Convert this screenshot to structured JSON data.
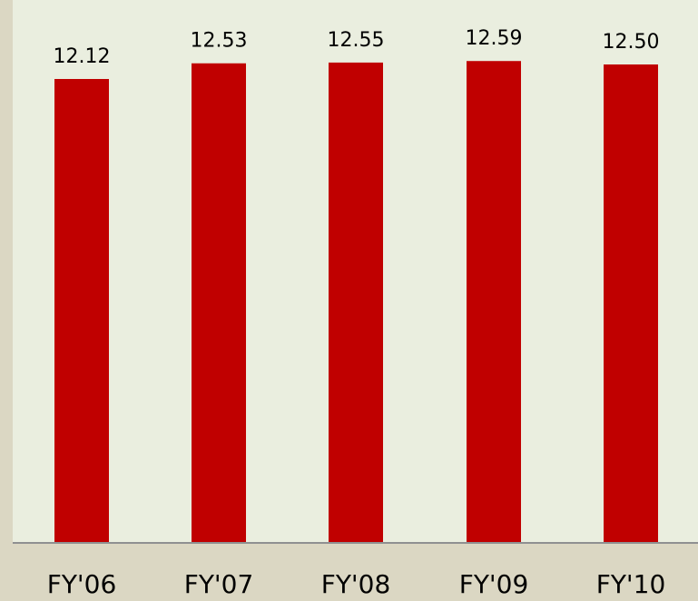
{
  "colors": {
    "page_background": "#dbd7c3",
    "plot_background": "#eaeedf",
    "bar": "#c00000",
    "axis_line": "#8f9091",
    "text": "#000000"
  },
  "chart_data": {
    "type": "bar",
    "categories": [
      "FY'06",
      "FY'07",
      "FY'08",
      "FY'09",
      "FY'10"
    ],
    "values": [
      12.12,
      12.53,
      12.55,
      12.59,
      12.5
    ],
    "value_labels": [
      "12.12",
      "12.53",
      "12.55",
      "12.59",
      "12.50"
    ],
    "title": "",
    "xlabel": "",
    "ylabel": "",
    "grid": false,
    "legend": "none"
  }
}
